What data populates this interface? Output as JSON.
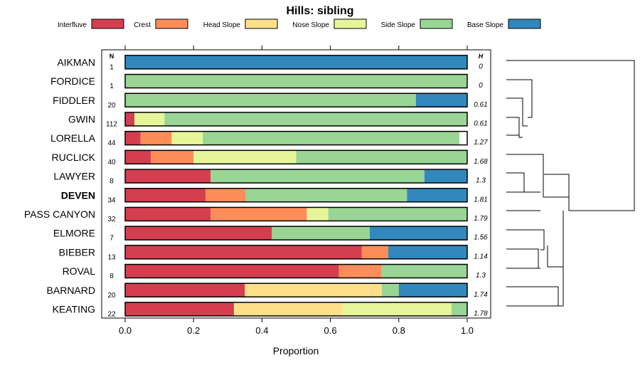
{
  "chart_data": {
    "type": "bar",
    "orientation": "horizontal",
    "stacked": true,
    "title": "Hills: sibling",
    "xlabel": "Proportion",
    "xlim": [
      0,
      1
    ],
    "x_ticks": [
      "0.0",
      "0.2",
      "0.4",
      "0.6",
      "0.8",
      "1.0"
    ],
    "n_header": "N",
    "h_header": "H",
    "legend_position": "top",
    "series": [
      {
        "name": "Interfluve",
        "color": "#d53e4f"
      },
      {
        "name": "Crest",
        "color": "#fc8d59"
      },
      {
        "name": "Head Slope",
        "color": "#fee08b"
      },
      {
        "name": "Nose Slope",
        "color": "#e6f598"
      },
      {
        "name": "Side Slope",
        "color": "#99d594"
      },
      {
        "name": "Base Slope",
        "color": "#3288bd"
      }
    ],
    "categories": [
      {
        "label": "AIKMAN",
        "bold": false,
        "n": "1",
        "h": "0",
        "values": [
          0,
          0,
          0,
          0,
          0,
          1.0
        ]
      },
      {
        "label": "FORDICE",
        "bold": false,
        "n": "1",
        "h": "0",
        "values": [
          0,
          0,
          0,
          0,
          1.0,
          0
        ]
      },
      {
        "label": "FIDDLER",
        "bold": false,
        "n": "20",
        "h": "0.61",
        "values": [
          0,
          0,
          0,
          0,
          0.85,
          0.15
        ]
      },
      {
        "label": "GWIN",
        "bold": false,
        "n": "112",
        "h": "0.61",
        "values": [
          0.027,
          0,
          0,
          0.088,
          0.885,
          0
        ]
      },
      {
        "label": "LORELLA",
        "bold": false,
        "n": "44",
        "h": "1.27",
        "values": [
          0.045,
          0.091,
          0,
          0.091,
          0.75,
          0
        ]
      },
      {
        "label": "RUCLICK",
        "bold": false,
        "n": "40",
        "h": "1.68",
        "values": [
          0.075,
          0.125,
          0,
          0.3,
          0.5,
          0
        ]
      },
      {
        "label": "LAWYER",
        "bold": false,
        "n": "8",
        "h": "1.3",
        "values": [
          0.25,
          0,
          0,
          0,
          0.625,
          0.125
        ]
      },
      {
        "label": "DEVEN",
        "bold": true,
        "n": "34",
        "h": "1.81",
        "values": [
          0.235,
          0.118,
          0,
          0,
          0.471,
          0.176
        ]
      },
      {
        "label": "PASS CANYON",
        "bold": false,
        "n": "32",
        "h": "1.79",
        "values": [
          0.25,
          0.281,
          0,
          0.063,
          0.406,
          0
        ]
      },
      {
        "label": "ELMORE",
        "bold": false,
        "n": "7",
        "h": "1.56",
        "values": [
          0.429,
          0,
          0,
          0,
          0.286,
          0.286
        ]
      },
      {
        "label": "BIEBER",
        "bold": false,
        "n": "13",
        "h": "1.14",
        "values": [
          0.692,
          0.077,
          0,
          0,
          0,
          0.231
        ]
      },
      {
        "label": "ROVAL",
        "bold": false,
        "n": "8",
        "h": "1.3",
        "values": [
          0.625,
          0.125,
          0,
          0,
          0.25,
          0
        ]
      },
      {
        "label": "BARNARD",
        "bold": false,
        "n": "20",
        "h": "1.74",
        "values": [
          0.35,
          0,
          0.4,
          0,
          0.05,
          0.2
        ]
      },
      {
        "label": "KEATING",
        "bold": false,
        "n": "22",
        "h": "1.78",
        "values": [
          0.318,
          0,
          0.318,
          0.318,
          0.045,
          0
        ]
      }
    ]
  }
}
